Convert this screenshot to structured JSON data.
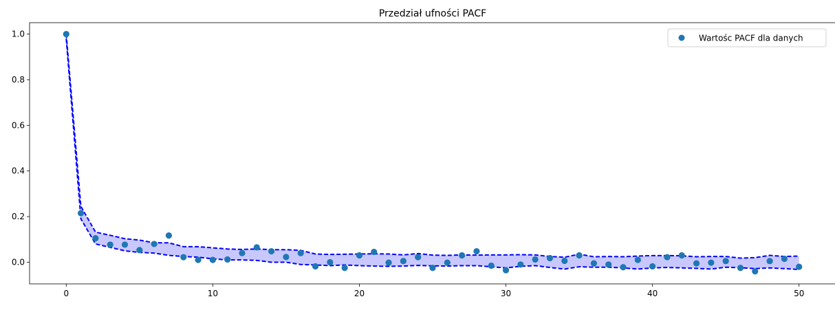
{
  "chart_data": {
    "type": "scatter",
    "title": "Przedział ufności PACF",
    "xlabel": "",
    "ylabel": "",
    "xlim": [
      -2.5,
      52.5
    ],
    "ylim": [
      -0.095,
      1.05
    ],
    "xticks": [
      0,
      10,
      20,
      30,
      40,
      50
    ],
    "yticks": [
      0.0,
      0.2,
      0.4,
      0.6,
      0.8,
      1.0
    ],
    "legend": {
      "placement": "top-right",
      "entries": [
        "Wartośc PACF dla danych"
      ]
    },
    "grid": false,
    "series": [
      {
        "name": "Wartośc PACF dla danych",
        "kind": "scatter",
        "color": "#1f77b4",
        "x": [
          0,
          1,
          2,
          3,
          4,
          5,
          6,
          7,
          8,
          9,
          10,
          11,
          12,
          13,
          14,
          15,
          16,
          17,
          18,
          19,
          20,
          21,
          22,
          23,
          24,
          25,
          26,
          27,
          28,
          29,
          30,
          31,
          32,
          33,
          34,
          35,
          36,
          37,
          38,
          39,
          40,
          41,
          42,
          43,
          44,
          45,
          46,
          47,
          48,
          49,
          50
        ],
        "y": [
          1.0,
          0.215,
          0.105,
          0.077,
          0.077,
          0.053,
          0.08,
          0.117,
          0.022,
          0.01,
          0.01,
          0.012,
          0.04,
          0.065,
          0.048,
          0.023,
          0.04,
          -0.018,
          0.0,
          -0.025,
          0.03,
          0.045,
          -0.002,
          0.005,
          0.022,
          -0.025,
          -0.002,
          0.03,
          0.048,
          -0.015,
          -0.035,
          -0.01,
          0.012,
          0.018,
          0.006,
          0.03,
          -0.005,
          -0.01,
          -0.022,
          0.01,
          -0.018,
          0.022,
          0.03,
          -0.005,
          -0.002,
          0.005,
          -0.025,
          -0.04,
          0.005,
          0.015,
          -0.02
        ]
      },
      {
        "name": "",
        "kind": "band-upper",
        "color": "#0000ff",
        "x": [
          0,
          1,
          2,
          3,
          4,
          5,
          6,
          7,
          8,
          9,
          10,
          11,
          12,
          13,
          14,
          15,
          16,
          17,
          18,
          19,
          20,
          21,
          22,
          23,
          24,
          25,
          26,
          27,
          28,
          29,
          30,
          31,
          32,
          33,
          34,
          35,
          36,
          37,
          38,
          39,
          40,
          41,
          42,
          43,
          44,
          45,
          46,
          47,
          48,
          49,
          50
        ],
        "y": [
          1.0,
          0.245,
          0.132,
          0.118,
          0.103,
          0.097,
          0.085,
          0.085,
          0.068,
          0.068,
          0.063,
          0.058,
          0.056,
          0.058,
          0.055,
          0.055,
          0.052,
          0.036,
          0.034,
          0.035,
          0.036,
          0.037,
          0.036,
          0.032,
          0.038,
          0.031,
          0.03,
          0.032,
          0.031,
          0.032,
          0.032,
          0.033,
          0.032,
          0.025,
          0.022,
          0.035,
          0.024,
          0.025,
          0.024,
          0.027,
          0.029,
          0.029,
          0.028,
          0.024,
          0.025,
          0.025,
          0.018,
          0.02,
          0.03,
          0.025,
          0.027
        ]
      },
      {
        "name": "",
        "kind": "band-lower",
        "color": "#0000ff",
        "x": [
          0,
          1,
          2,
          3,
          4,
          5,
          6,
          7,
          8,
          9,
          10,
          11,
          12,
          13,
          14,
          15,
          16,
          17,
          18,
          19,
          20,
          21,
          22,
          23,
          24,
          25,
          26,
          27,
          28,
          29,
          30,
          31,
          32,
          33,
          34,
          35,
          36,
          37,
          38,
          39,
          40,
          41,
          42,
          43,
          44,
          45,
          46,
          47,
          48,
          49,
          50
        ],
        "y": [
          0.98,
          0.19,
          0.08,
          0.065,
          0.05,
          0.043,
          0.04,
          0.03,
          0.025,
          0.022,
          0.015,
          0.01,
          0.01,
          0.008,
          0.0,
          0.0,
          -0.01,
          -0.012,
          -0.015,
          -0.012,
          -0.015,
          -0.017,
          -0.018,
          -0.017,
          -0.014,
          -0.016,
          -0.017,
          -0.015,
          -0.015,
          -0.02,
          -0.025,
          -0.018,
          -0.015,
          -0.023,
          -0.03,
          -0.02,
          -0.022,
          -0.022,
          -0.025,
          -0.03,
          -0.025,
          -0.023,
          -0.025,
          -0.027,
          -0.03,
          -0.022,
          -0.024,
          -0.028,
          -0.025,
          -0.028,
          -0.032
        ]
      }
    ],
    "band_fill_color": "#c8c8ff",
    "marker_color": "#1f77b4",
    "axis_color": "#000000"
  }
}
